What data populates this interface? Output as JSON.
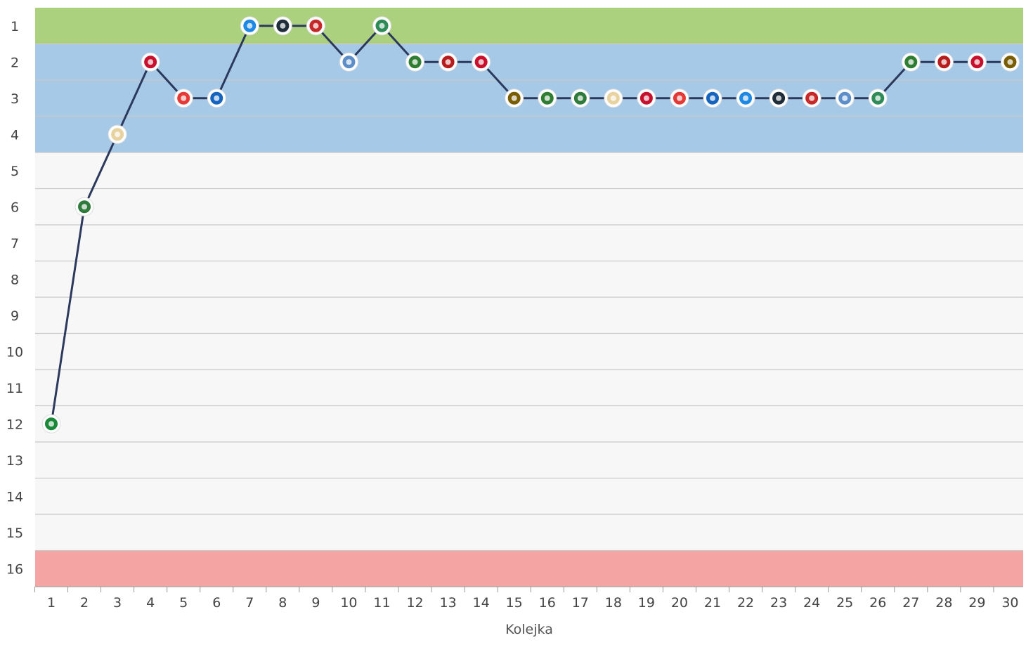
{
  "chart_data": {
    "type": "line",
    "title": "",
    "xlabel": "Kolejka",
    "ylabel": "",
    "x": [
      1,
      2,
      3,
      4,
      5,
      6,
      7,
      8,
      9,
      10,
      11,
      12,
      13,
      14,
      15,
      16,
      17,
      18,
      19,
      20,
      21,
      22,
      23,
      24,
      25,
      26,
      27,
      28,
      29,
      30
    ],
    "x_tick_labels": [
      "1",
      "2",
      "3",
      "4",
      "5",
      "6",
      "7",
      "8",
      "9",
      "10",
      "11",
      "12",
      "13",
      "14",
      "15",
      "16",
      "17",
      "18",
      "19",
      "20",
      "21",
      "22",
      "23",
      "24",
      "25",
      "26",
      "27",
      "28",
      "29",
      "30"
    ],
    "y_tick_labels": [
      "1",
      "2",
      "3",
      "4",
      "5",
      "6",
      "7",
      "8",
      "9",
      "10",
      "11",
      "12",
      "13",
      "14",
      "15",
      "16"
    ],
    "y_reversed": true,
    "ylim": [
      1,
      16
    ],
    "xlim": [
      1,
      30
    ],
    "grid": true,
    "series": [
      {
        "values": [
          12,
          6,
          4,
          2,
          3,
          3,
          1,
          1,
          1,
          2,
          1,
          2,
          2,
          2,
          3,
          3,
          3,
          3,
          3,
          3,
          3,
          3,
          3,
          3,
          3,
          3,
          2,
          2,
          2,
          2
        ],
        "color": "#2b3a5c"
      }
    ],
    "bands": [
      {
        "from": 1,
        "to": 1,
        "color": "#acd17e"
      },
      {
        "from": 2,
        "to": 4,
        "color": "#a7c9e8"
      },
      {
        "from": 16,
        "to": 16,
        "color": "#f4a5a3"
      }
    ],
    "marker_colors": [
      "#1a8a3a",
      "#2d7a3a",
      "#e8d2a0",
      "#c8102e",
      "#e53935",
      "#1565c0",
      "#1e88e5",
      "#1f2d3a",
      "#c62828",
      "#5d8ec9",
      "#2e8b57",
      "#2e7d32",
      "#b71c1c",
      "#c8102e",
      "#7a5c00",
      "#2e7d32",
      "#2d7a3a",
      "#e8d2a0",
      "#c8102e",
      "#e53935",
      "#1565c0",
      "#1e88e5",
      "#1f2d3a",
      "#c62828",
      "#5d8ec9",
      "#2e8b57",
      "#2e7d32",
      "#b71c1c",
      "#c8102e",
      "#7a5c00"
    ]
  }
}
